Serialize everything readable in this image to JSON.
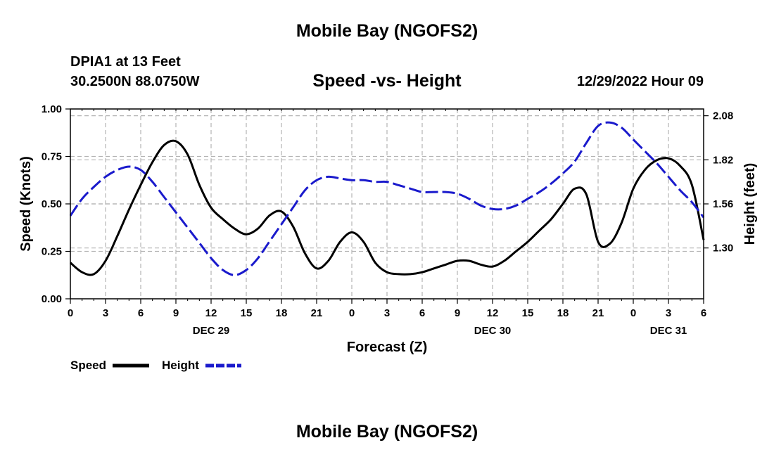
{
  "titles": {
    "main": "Mobile Bay (NGOFS2)",
    "station": "DPIA1 at 13 Feet",
    "coords": "30.2500N  88.0750W",
    "subtitle": "Speed -vs- Height",
    "datetime": "12/29/2022 Hour 09",
    "bottom": "Mobile Bay (NGOFS2)"
  },
  "colors": {
    "speed": "#000000",
    "height": "#1a1acc",
    "grid": "#b4b4b4"
  },
  "chart_data": {
    "type": "line",
    "title": "Speed -vs- Height",
    "xlabel": "Forecast (Z)",
    "ylabel": "Speed (Knots)",
    "y2label": "Height (feet)",
    "xlim": [
      0,
      54
    ],
    "ylim": [
      0,
      1.0
    ],
    "y2lim": [
      1.0,
      2.12
    ],
    "x_ticks": [
      0,
      3,
      6,
      9,
      12,
      15,
      18,
      21,
      24,
      27,
      30,
      33,
      36,
      39,
      42,
      45,
      48,
      51,
      54
    ],
    "x_tick_labels": [
      "0",
      "3",
      "6",
      "9",
      "12",
      "15",
      "18",
      "21",
      "0",
      "3",
      "6",
      "9",
      "12",
      "15",
      "18",
      "21",
      "0",
      "3",
      "6"
    ],
    "day_labels": [
      {
        "x": 12,
        "label": "DEC 29"
      },
      {
        "x": 36,
        "label": "DEC 30"
      },
      {
        "x": 51,
        "label": "DEC 31"
      }
    ],
    "y_ticks": [
      0.0,
      0.25,
      0.5,
      0.75,
      1.0
    ],
    "y_tick_labels": [
      "0.00",
      "0.25",
      "0.50",
      "0.75",
      "1.00"
    ],
    "y2_ticks": [
      1.3,
      1.56,
      1.82,
      2.08
    ],
    "y2_tick_labels": [
      "1.30",
      "1.56",
      "1.82",
      "2.08"
    ],
    "legend_position": "bottom-left",
    "series": [
      {
        "name": "Speed",
        "axis": "left",
        "style": "solid",
        "x": [
          0,
          1,
          2,
          3,
          4,
          5,
          6,
          7,
          8,
          9,
          10,
          11,
          12,
          13,
          14,
          15,
          16,
          17,
          18,
          19,
          20,
          21,
          22,
          23,
          24,
          25,
          26,
          27,
          28,
          29,
          30,
          31,
          32,
          33,
          34,
          35,
          36,
          37,
          38,
          39,
          40,
          41,
          42,
          43,
          44,
          45,
          46,
          47,
          48,
          49,
          50,
          51,
          52,
          53,
          54
        ],
        "values": [
          0.19,
          0.14,
          0.13,
          0.2,
          0.33,
          0.47,
          0.6,
          0.72,
          0.81,
          0.83,
          0.76,
          0.6,
          0.48,
          0.42,
          0.37,
          0.34,
          0.37,
          0.44,
          0.46,
          0.38,
          0.24,
          0.16,
          0.2,
          0.3,
          0.35,
          0.3,
          0.19,
          0.14,
          0.13,
          0.13,
          0.14,
          0.16,
          0.18,
          0.2,
          0.2,
          0.18,
          0.17,
          0.2,
          0.25,
          0.3,
          0.36,
          0.42,
          0.5,
          0.58,
          0.55,
          0.3,
          0.29,
          0.4,
          0.58,
          0.68,
          0.73,
          0.74,
          0.7,
          0.6,
          0.31
        ]
      },
      {
        "name": "Height",
        "axis": "right",
        "style": "dashed",
        "x": [
          0,
          1,
          2,
          3,
          4,
          5,
          6,
          7,
          8,
          9,
          10,
          11,
          12,
          13,
          14,
          15,
          16,
          17,
          18,
          19,
          20,
          21,
          22,
          23,
          24,
          25,
          26,
          27,
          28,
          29,
          30,
          31,
          32,
          33,
          34,
          35,
          36,
          37,
          38,
          39,
          40,
          41,
          42,
          43,
          44,
          45,
          46,
          47,
          48,
          49,
          50,
          51,
          52,
          53,
          54
        ],
        "values": [
          1.49,
          1.59,
          1.66,
          1.72,
          1.76,
          1.78,
          1.76,
          1.69,
          1.6,
          1.51,
          1.42,
          1.33,
          1.24,
          1.17,
          1.14,
          1.17,
          1.24,
          1.34,
          1.44,
          1.54,
          1.64,
          1.7,
          1.72,
          1.71,
          1.7,
          1.7,
          1.69,
          1.69,
          1.67,
          1.65,
          1.63,
          1.63,
          1.63,
          1.62,
          1.59,
          1.55,
          1.53,
          1.53,
          1.55,
          1.59,
          1.63,
          1.68,
          1.74,
          1.81,
          1.92,
          2.02,
          2.04,
          2.01,
          1.94,
          1.87,
          1.8,
          1.72,
          1.64,
          1.57,
          1.48
        ]
      }
    ]
  }
}
